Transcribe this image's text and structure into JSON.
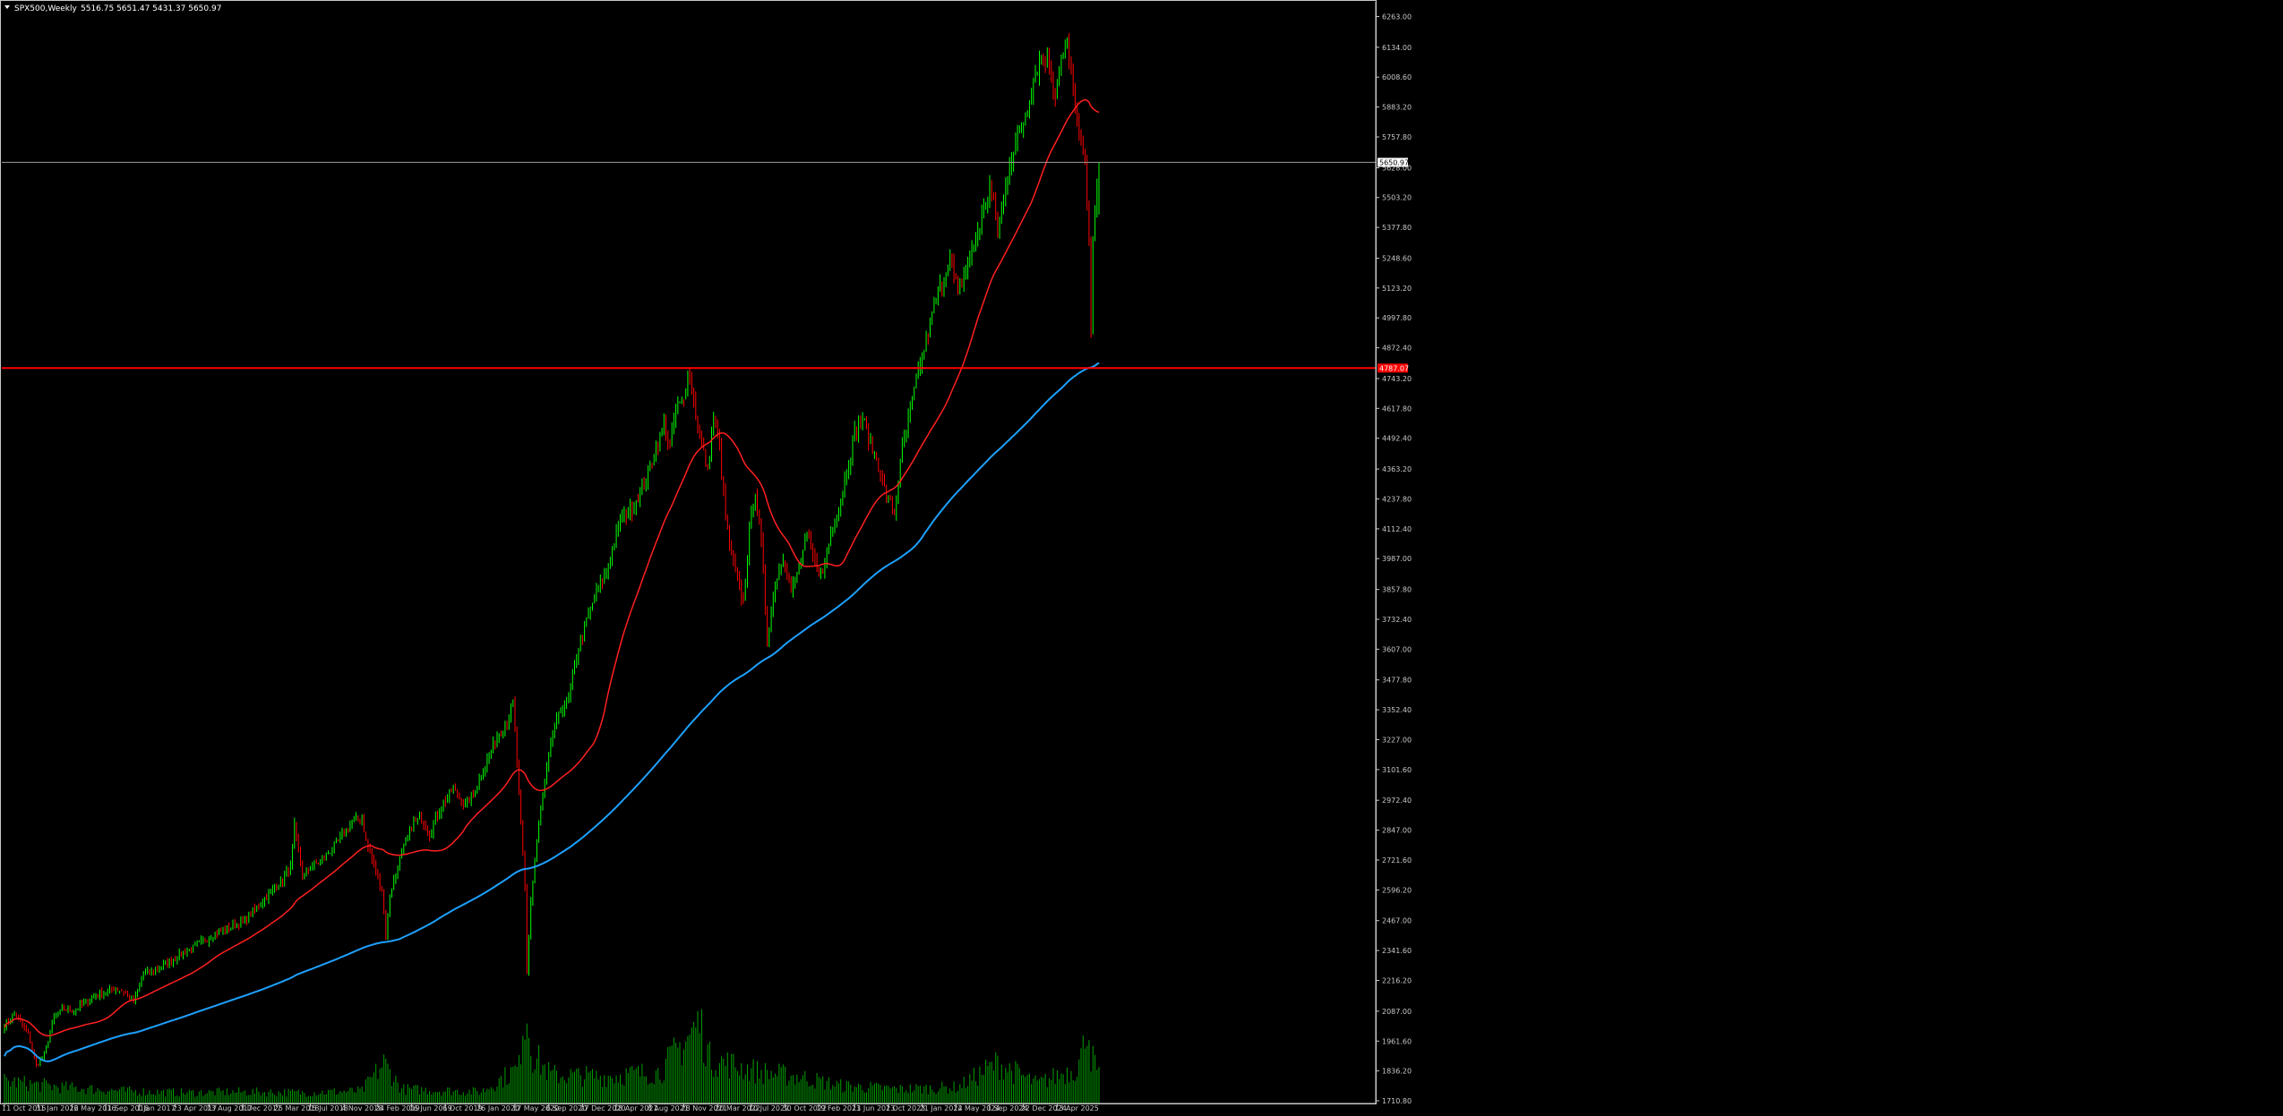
{
  "window": {
    "symbol_line": "SPX500,Weekly",
    "ohlc_line": "5516.75 5651.47 5431.37 5650.97"
  },
  "colors": {
    "background": "#000000",
    "axis": "#c8c8c8",
    "bull_candle": "#00ff00",
    "bear_candle": "#ff0000",
    "ma_fast": "#ff2020",
    "ma_slow": "#1ea0ff",
    "volume": "#00a000",
    "support_line": "#ff0000",
    "price_line": "#9e9e9e"
  },
  "chart_data": {
    "type": "candlestick",
    "timeframe": "Weekly",
    "ylim": [
      1710.8,
      6300
    ],
    "y_ticks": [
      "6263.00",
      "6134.00",
      "6008.60",
      "5883.20",
      "5757.80",
      "5628.00",
      "5503.20",
      "5377.80",
      "5248.60",
      "5123.20",
      "4997.80",
      "4872.40",
      "4743.20",
      "4617.80",
      "4492.40",
      "4363.20",
      "4237.80",
      "4112.40",
      "3987.00",
      "3857.80",
      "3732.40",
      "3607.00",
      "3477.80",
      "3352.40",
      "3227.00",
      "3101.60",
      "2972.40",
      "2847.00",
      "2721.60",
      "2596.20",
      "2467.00",
      "2341.60",
      "2216.20",
      "2087.00",
      "1961.60",
      "1836.20",
      "1710.80"
    ],
    "x_labels": [
      "11 Oct 2015",
      "31 Jan 2016",
      "22 May 2016",
      "11 Sep 2016",
      "1 Jan 2017",
      "23 Apr 2017",
      "13 Aug 2017",
      "3 Dec 2017",
      "25 Mar 2018",
      "15 Jul 2018",
      "4 Nov 2018",
      "24 Feb 2019",
      "16 Jun 2019",
      "6 Oct 2019",
      "26 Jan 2020",
      "17 May 2020",
      "6 Sep 2020",
      "27 Dec 2020",
      "18 Apr 2021",
      "8 Aug 2021",
      "28 Nov 2021",
      "20 Mar 2022",
      "10 Jul 2022",
      "30 Oct 2022",
      "19 Feb 2023",
      "11 Jun 2023",
      "1 Oct 2023",
      "21 Jan 2024",
      "12 May 2024",
      "1 Sep 2024",
      "22 Dec 2024",
      "13 Apr 2025"
    ],
    "last_candle": {
      "open": 5516.75,
      "high": 5651.47,
      "low": 5431.37,
      "close": 5650.97
    },
    "current_price": {
      "value": 5650.97,
      "label": "5650.97"
    },
    "horizontal_level": {
      "value": 4787.07,
      "label": "4787.07"
    },
    "price_path": [
      [
        0,
        2030
      ],
      [
        5,
        2080
      ],
      [
        12,
        1990
      ],
      [
        16,
        1860
      ],
      [
        20,
        1900
      ],
      [
        25,
        2060
      ],
      [
        30,
        2100
      ],
      [
        35,
        2090
      ],
      [
        40,
        2120
      ],
      [
        48,
        2160
      ],
      [
        55,
        2180
      ],
      [
        60,
        2170
      ],
      [
        65,
        2130
      ],
      [
        70,
        2240
      ],
      [
        80,
        2280
      ],
      [
        90,
        2330
      ],
      [
        100,
        2380
      ],
      [
        110,
        2430
      ],
      [
        120,
        2460
      ],
      [
        130,
        2550
      ],
      [
        140,
        2640
      ],
      [
        144,
        2690
      ],
      [
        146,
        2860
      ],
      [
        150,
        2650
      ],
      [
        155,
        2700
      ],
      [
        160,
        2720
      ],
      [
        168,
        2800
      ],
      [
        175,
        2880
      ],
      [
        180,
        2900
      ],
      [
        182,
        2800
      ],
      [
        186,
        2700
      ],
      [
        190,
        2600
      ],
      [
        192,
        2400
      ],
      [
        194,
        2580
      ],
      [
        200,
        2750
      ],
      [
        206,
        2880
      ],
      [
        210,
        2900
      ],
      [
        214,
        2830
      ],
      [
        220,
        2950
      ],
      [
        226,
        3020
      ],
      [
        232,
        2950
      ],
      [
        236,
        3000
      ],
      [
        242,
        3120
      ],
      [
        248,
        3240
      ],
      [
        253,
        3300
      ],
      [
        256,
        3380
      ],
      [
        259,
        3000
      ],
      [
        262,
        2600
      ],
      [
        263,
        2250
      ],
      [
        265,
        2550
      ],
      [
        268,
        2800
      ],
      [
        272,
        3050
      ],
      [
        276,
        3250
      ],
      [
        280,
        3350
      ],
      [
        284,
        3400
      ],
      [
        288,
        3580
      ],
      [
        292,
        3700
      ],
      [
        298,
        3850
      ],
      [
        304,
        3950
      ],
      [
        310,
        4150
      ],
      [
        316,
        4200
      ],
      [
        322,
        4300
      ],
      [
        328,
        4450
      ],
      [
        332,
        4550
      ],
      [
        335,
        4450
      ],
      [
        338,
        4620
      ],
      [
        342,
        4650
      ],
      [
        344,
        4780
      ],
      [
        346,
        4700
      ],
      [
        350,
        4500
      ],
      [
        354,
        4350
      ],
      [
        357,
        4580
      ],
      [
        360,
        4450
      ],
      [
        363,
        4160
      ],
      [
        366,
        4000
      ],
      [
        369,
        3900
      ],
      [
        372,
        3800
      ],
      [
        375,
        4100
      ],
      [
        378,
        4280
      ],
      [
        381,
        4050
      ],
      [
        384,
        3650
      ],
      [
        388,
        3880
      ],
      [
        392,
        4000
      ],
      [
        396,
        3850
      ],
      [
        400,
        3950
      ],
      [
        404,
        4080
      ],
      [
        408,
        3970
      ],
      [
        412,
        3920
      ],
      [
        416,
        4100
      ],
      [
        420,
        4200
      ],
      [
        424,
        4350
      ],
      [
        428,
        4520
      ],
      [
        432,
        4580
      ],
      [
        436,
        4470
      ],
      [
        440,
        4380
      ],
      [
        444,
        4250
      ],
      [
        448,
        4180
      ],
      [
        452,
        4450
      ],
      [
        456,
        4600
      ],
      [
        460,
        4780
      ],
      [
        464,
        4900
      ],
      [
        468,
        5050
      ],
      [
        472,
        5150
      ],
      [
        476,
        5250
      ],
      [
        480,
        5100
      ],
      [
        484,
        5200
      ],
      [
        488,
        5300
      ],
      [
        492,
        5420
      ],
      [
        496,
        5550
      ],
      [
        498,
        5470
      ],
      [
        500,
        5350
      ],
      [
        503,
        5500
      ],
      [
        506,
        5650
      ],
      [
        510,
        5750
      ],
      [
        514,
        5850
      ],
      [
        518,
        6000
      ],
      [
        522,
        6100
      ],
      [
        526,
        6070
      ],
      [
        529,
        5940
      ],
      [
        532,
        6090
      ],
      [
        535,
        6140
      ],
      [
        538,
        5960
      ],
      [
        541,
        5750
      ],
      [
        544,
        5640
      ],
      [
        546,
        5300
      ],
      [
        547,
        4980
      ],
      [
        548,
        5350
      ],
      [
        550,
        5550
      ],
      [
        551,
        5650.97
      ]
    ],
    "volume_path": [
      [
        0,
        25
      ],
      [
        30,
        18
      ],
      [
        60,
        14
      ],
      [
        90,
        12
      ],
      [
        120,
        13
      ],
      [
        150,
        12
      ],
      [
        180,
        14
      ],
      [
        191,
        45
      ],
      [
        200,
        16
      ],
      [
        240,
        13
      ],
      [
        259,
        40
      ],
      [
        261,
        95
      ],
      [
        263,
        100
      ],
      [
        266,
        55
      ],
      [
        275,
        32
      ],
      [
        300,
        30
      ],
      [
        330,
        35
      ],
      [
        350,
        90
      ],
      [
        355,
        50
      ],
      [
        380,
        35
      ],
      [
        400,
        30
      ],
      [
        420,
        20
      ],
      [
        450,
        16
      ],
      [
        480,
        18
      ],
      [
        500,
        45
      ],
      [
        520,
        22
      ],
      [
        540,
        40
      ],
      [
        543,
        60
      ],
      [
        545,
        100
      ],
      [
        547,
        55
      ],
      [
        551,
        30
      ]
    ],
    "ma_fast_period": 40,
    "ma_slow_period": 200,
    "weeks": 552
  }
}
